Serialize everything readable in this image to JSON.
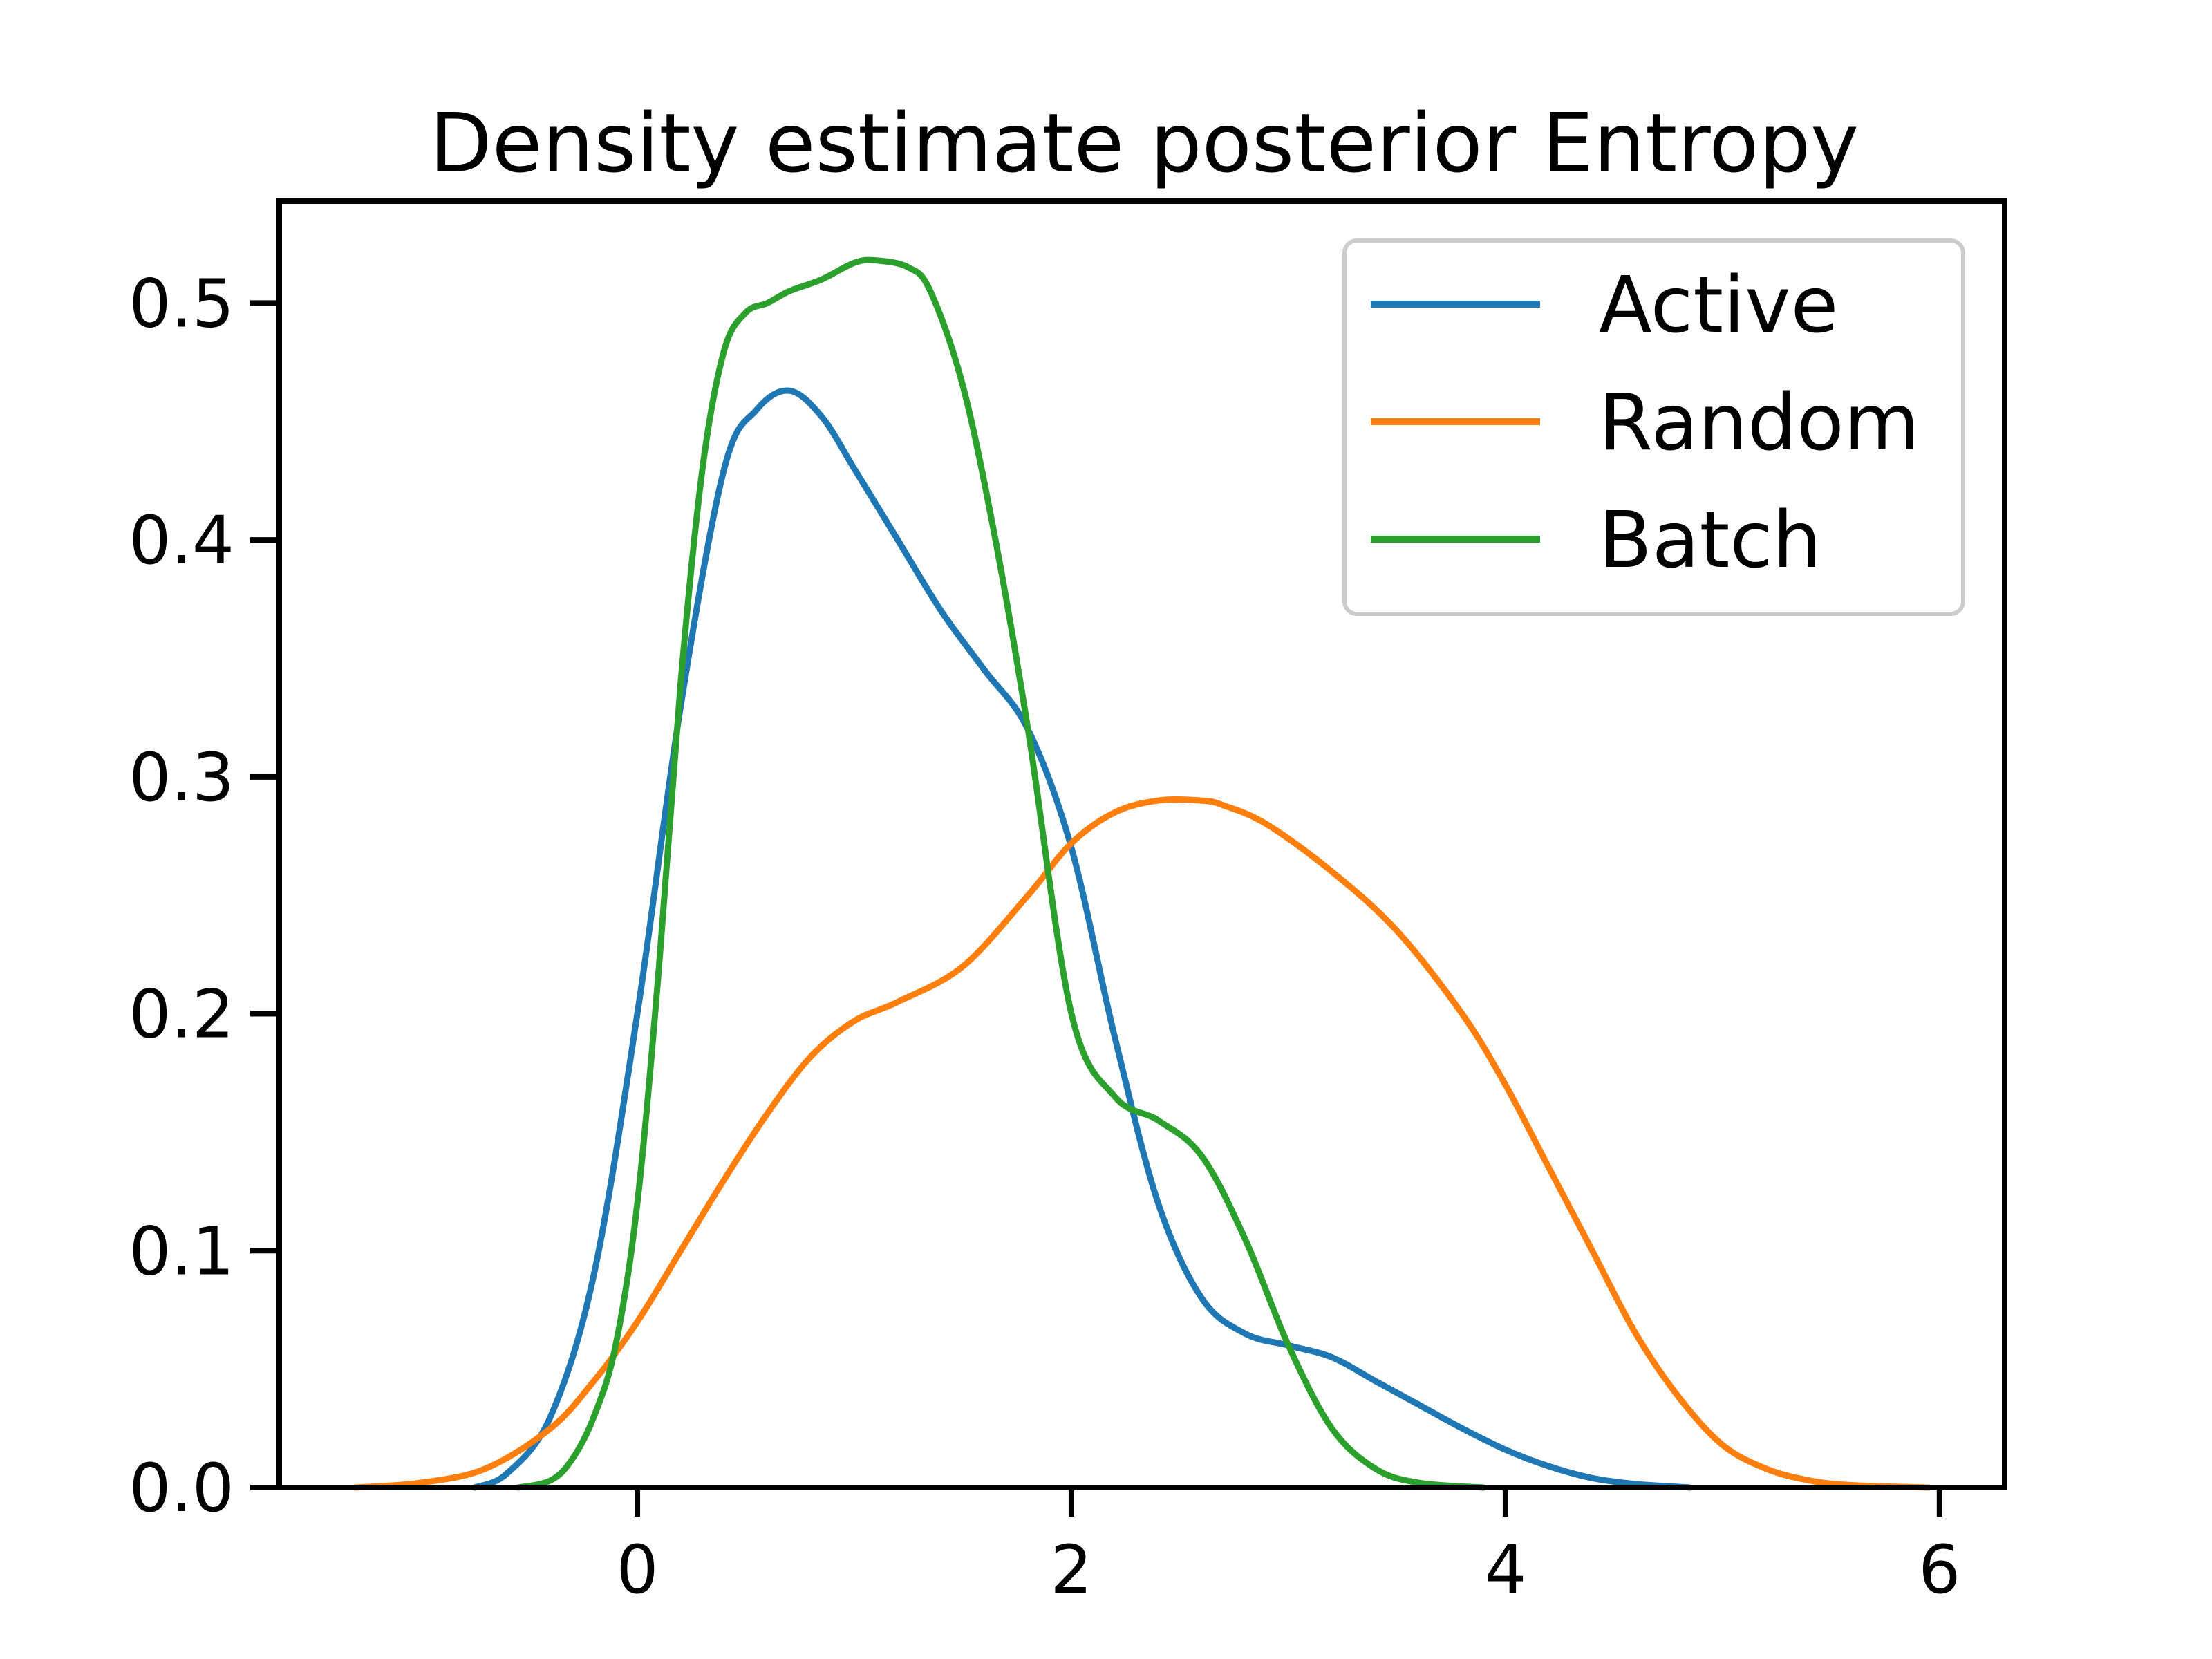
{
  "chart_data": {
    "type": "line",
    "title": "Density estimate posterior Entropy",
    "xlabel": "",
    "ylabel": "",
    "xlim": [
      -1.65,
      6.3
    ],
    "ylim": [
      0,
      0.543
    ],
    "xticks": [
      0,
      2,
      4,
      6
    ],
    "xtick_labels": [
      "0",
      "2",
      "4",
      "6"
    ],
    "yticks": [
      0.0,
      0.1,
      0.2,
      0.3,
      0.4,
      0.5
    ],
    "ytick_labels": [
      "0.0",
      "0.1",
      "0.2",
      "0.3",
      "0.4",
      "0.5"
    ],
    "grid": false,
    "legend": {
      "position": "top-right",
      "entries": [
        "Active",
        "Random",
        "Batch"
      ]
    },
    "series": [
      {
        "name": "Active",
        "color": "#1f77b4",
        "x": [
          -0.75,
          -0.6,
          -0.4,
          -0.2,
          0.0,
          0.2,
          0.4,
          0.55,
          0.7,
          0.85,
          1.0,
          1.2,
          1.4,
          1.6,
          1.8,
          2.0,
          2.2,
          2.4,
          2.6,
          2.8,
          3.0,
          3.2,
          3.4,
          3.6,
          3.8,
          4.0,
          4.2,
          4.4,
          4.6,
          4.85
        ],
        "y": [
          0.0,
          0.006,
          0.03,
          0.09,
          0.2,
          0.33,
          0.43,
          0.455,
          0.463,
          0.452,
          0.43,
          0.4,
          0.37,
          0.345,
          0.32,
          0.27,
          0.19,
          0.12,
          0.08,
          0.065,
          0.06,
          0.055,
          0.045,
          0.035,
          0.025,
          0.016,
          0.009,
          0.004,
          0.0015,
          0.0
        ]
      },
      {
        "name": "Random",
        "color": "#ff7f0e",
        "x": [
          -1.3,
          -1.0,
          -0.7,
          -0.4,
          -0.2,
          0.0,
          0.2,
          0.4,
          0.6,
          0.8,
          1.0,
          1.2,
          1.5,
          1.8,
          2.0,
          2.2,
          2.4,
          2.6,
          2.7,
          2.9,
          3.2,
          3.5,
          3.8,
          4.0,
          4.2,
          4.4,
          4.6,
          4.8,
          5.0,
          5.2,
          5.4,
          5.6,
          5.95
        ],
        "y": [
          0.0,
          0.002,
          0.008,
          0.025,
          0.045,
          0.07,
          0.1,
          0.13,
          0.158,
          0.182,
          0.197,
          0.205,
          0.22,
          0.25,
          0.272,
          0.285,
          0.29,
          0.29,
          0.288,
          0.28,
          0.26,
          0.235,
          0.2,
          0.17,
          0.135,
          0.1,
          0.065,
          0.038,
          0.018,
          0.008,
          0.003,
          0.001,
          0.0
        ]
      },
      {
        "name": "Batch",
        "color": "#2ca02c",
        "x": [
          -0.55,
          -0.4,
          -0.3,
          -0.2,
          -0.1,
          0.0,
          0.1,
          0.2,
          0.3,
          0.4,
          0.5,
          0.6,
          0.7,
          0.85,
          1.0,
          1.1,
          1.25,
          1.35,
          1.5,
          1.65,
          1.8,
          2.0,
          2.2,
          2.4,
          2.6,
          2.8,
          3.0,
          3.2,
          3.4,
          3.6,
          3.9
        ],
        "y": [
          0.0,
          0.003,
          0.012,
          0.03,
          0.06,
          0.12,
          0.22,
          0.34,
          0.43,
          0.48,
          0.496,
          0.5,
          0.505,
          0.51,
          0.517,
          0.518,
          0.515,
          0.505,
          0.465,
          0.4,
          0.32,
          0.2,
          0.165,
          0.155,
          0.14,
          0.105,
          0.06,
          0.025,
          0.008,
          0.002,
          0.0
        ]
      }
    ]
  }
}
